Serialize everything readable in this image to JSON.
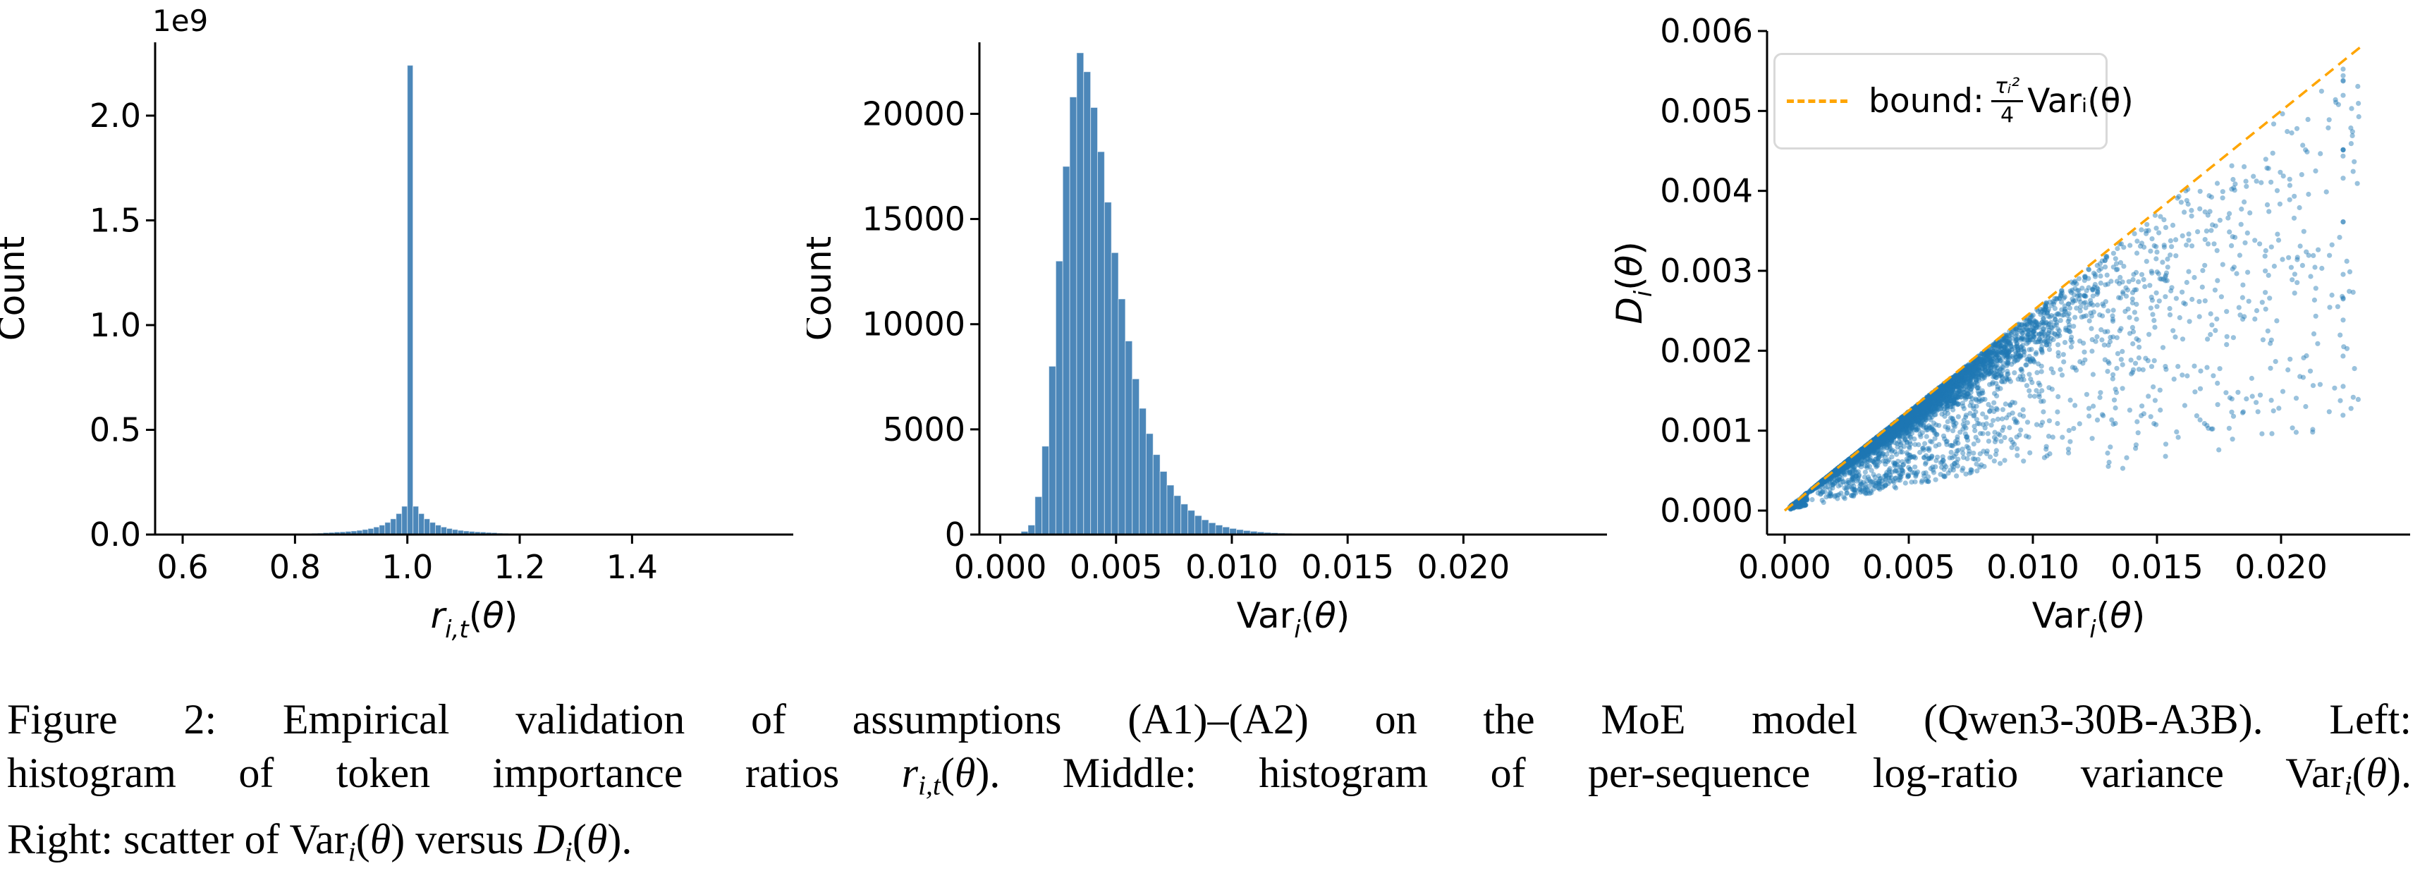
{
  "colors": {
    "bar_fill": "#4c87b9",
    "bar_edge": "#ffffff",
    "scatter_point": "#1f77b4",
    "bound_line": "#ffa500",
    "axis": "#000000",
    "legend_border": "#d9d9d9",
    "background": "#ffffff"
  },
  "chart_data": [
    {
      "type": "bar",
      "id": "left-histogram",
      "title": "",
      "xlabel_segments": [
        {
          "t": "r",
          "it": true
        },
        {
          "t": "i,t",
          "sub": true,
          "it": true
        },
        {
          "t": "("
        },
        {
          "t": "θ",
          "it": true
        },
        {
          "t": ")"
        }
      ],
      "ylabel": "Count",
      "offset_text": "1e9",
      "y_unit": "1e9",
      "grid": false,
      "xlim": [
        0.551,
        1.687
      ],
      "ylim": [
        0,
        2.35
      ],
      "x_ticks": {
        "values": [
          0.6,
          0.8,
          1.0,
          1.2,
          1.4
        ],
        "labels": [
          "0.6",
          "0.8",
          "1.0",
          "1.2",
          "1.4"
        ]
      },
      "y_ticks": {
        "values": [
          0,
          0.5,
          1.0,
          1.5,
          2.0
        ],
        "labels": [
          "0.0",
          "0.5",
          "1.0",
          "1.5",
          "2.0"
        ]
      },
      "bins": {
        "start": 0.6,
        "width": 0.01
      },
      "heights": [
        0,
        0,
        0,
        0,
        0,
        0,
        0,
        0,
        0,
        0,
        0.001,
        0.001,
        0.001,
        0.001,
        0.001,
        0.002,
        0.002,
        0.002,
        0.003,
        0.003,
        0.004,
        0.005,
        0.005,
        0.006,
        0.007,
        0.009,
        0.01,
        0.012,
        0.013,
        0.015,
        0.017,
        0.02,
        0.024,
        0.029,
        0.036,
        0.045,
        0.058,
        0.075,
        0.1,
        0.135,
        2.24,
        0.135,
        0.1,
        0.075,
        0.058,
        0.045,
        0.036,
        0.029,
        0.024,
        0.02,
        0.017,
        0.015,
        0.013,
        0.012,
        0.01,
        0.009,
        0.007,
        0.006,
        0.005,
        0.005,
        0.004,
        0.003,
        0.003,
        0.002,
        0.002,
        0.002,
        0.001,
        0.001,
        0.001,
        0.001,
        0.001,
        0,
        0,
        0,
        0,
        0,
        0,
        0,
        0,
        0,
        0,
        0,
        0,
        0,
        0,
        0,
        0,
        0,
        0,
        0,
        0
      ]
    },
    {
      "type": "bar",
      "id": "middle-histogram",
      "title": "",
      "xlabel_segments": [
        {
          "t": "Var"
        },
        {
          "t": "i",
          "sub": true,
          "it": true
        },
        {
          "t": "("
        },
        {
          "t": "θ",
          "it": true
        },
        {
          "t": ")"
        }
      ],
      "ylabel": "Count",
      "grid": false,
      "xlim": [
        -0.0009,
        0.0262
      ],
      "ylim": [
        0,
        23400
      ],
      "x_ticks": {
        "values": [
          0.0,
          0.005,
          0.01,
          0.015,
          0.02
        ],
        "labels": [
          "0.000",
          "0.005",
          "0.010",
          "0.015",
          "0.020"
        ]
      },
      "y_ticks": {
        "values": [
          0,
          5000,
          10000,
          15000,
          20000
        ],
        "labels": [
          "0",
          "5000",
          "10000",
          "15000",
          "20000"
        ]
      },
      "bins": {
        "start": 0.0,
        "width": 0.0003
      },
      "heights": [
        0,
        0,
        30,
        150,
        450,
        1800,
        4200,
        8000,
        13000,
        17500,
        20800,
        22900,
        22000,
        20300,
        18200,
        15800,
        13400,
        11200,
        9200,
        7400,
        6000,
        4800,
        3800,
        3000,
        2350,
        1850,
        1450,
        1150,
        900,
        700,
        560,
        450,
        360,
        290,
        235,
        190,
        155,
        125,
        100,
        85,
        70,
        58,
        48,
        40,
        33,
        27,
        22,
        18,
        15,
        12,
        10,
        8,
        7,
        6,
        5,
        4,
        4,
        3,
        3,
        2,
        2,
        2,
        2,
        1,
        1,
        1,
        1,
        1,
        1,
        1,
        1,
        1,
        1,
        1,
        1,
        1,
        0,
        0
      ]
    },
    {
      "type": "scatter",
      "id": "scatter-plot",
      "title": "",
      "xlabel_segments": [
        {
          "t": "Var"
        },
        {
          "t": "i",
          "sub": true,
          "it": true
        },
        {
          "t": "("
        },
        {
          "t": "θ",
          "it": true
        },
        {
          "t": ")"
        }
      ],
      "ylabel_segments": [
        {
          "t": "D",
          "it": true
        },
        {
          "t": "i",
          "sub": true,
          "it": true
        },
        {
          "t": "("
        },
        {
          "t": "θ",
          "it": true
        },
        {
          "t": ")"
        }
      ],
      "grid": false,
      "xlim": [
        -0.00071,
        0.0252
      ],
      "ylim": [
        -0.0003,
        0.006
      ],
      "x_ticks": {
        "values": [
          0.0,
          0.005,
          0.01,
          0.015,
          0.02
        ],
        "labels": [
          "0.000",
          "0.005",
          "0.010",
          "0.015",
          "0.020"
        ]
      },
      "y_ticks": {
        "values": [
          0.0,
          0.001,
          0.002,
          0.003,
          0.004,
          0.005,
          0.006
        ],
        "labels": [
          "0.000",
          "0.001",
          "0.002",
          "0.003",
          "0.004",
          "0.005",
          "0.006"
        ]
      },
      "bound": {
        "slope": 0.25,
        "x_start": 0.0,
        "x_end": 0.0232
      },
      "legend": {
        "prefix": "bound:",
        "frac_num": "τᵢ²",
        "frac_den": "4",
        "suffix": "Varᵢ(θ)"
      },
      "points": {
        "generated": true,
        "seed": 7,
        "note": "dense wedge of points hugging the bound line from below, sparser spread beneath and to the right",
        "groups": [
          {
            "kind": "core",
            "n": 5200,
            "x_log_mu": 0.0045,
            "x_log_sigma": 0.55,
            "x_min": 0.0003,
            "x_max": 0.0225,
            "f_spread_base": 0.06,
            "f_spread_slope": 18
          },
          {
            "kind": "uniform",
            "n": 900,
            "x_log_mu": 0.006,
            "x_log_sigma": 0.6,
            "x_min": 0.001,
            "x_max": 0.0225,
            "f_min": 0.25,
            "f_max": 0.9
          },
          {
            "kind": "uniform",
            "n": 260,
            "x_min": 0.013,
            "x_max": 0.0232,
            "f_min": 0.15,
            "f_max": 0.95
          },
          {
            "kind": "uniform",
            "n": 140,
            "x_min": 0.0002,
            "x_max": 0.0009,
            "f_min": 0.3,
            "f_max": 0.97
          }
        ]
      }
    }
  ],
  "caption": {
    "lines": [
      [
        {
          "t": "Figure 2: Empirical validation of assumptions (A1)–(A2) on the MoE model (Qwen3-30B-A3B). Left:"
        }
      ],
      [
        {
          "t": "histogram of token importance ratios "
        },
        {
          "t": "r",
          "it": true
        },
        {
          "t": "i,t",
          "sub": true,
          "it": true
        },
        {
          "t": "("
        },
        {
          "t": "θ",
          "it": true
        },
        {
          "t": ")"
        },
        {
          "t": ". Middle: histogram of per-sequence log-ratio variance Var"
        },
        {
          "t": "i",
          "sub": true,
          "it": true
        },
        {
          "t": "("
        },
        {
          "t": "θ",
          "it": true
        },
        {
          "t": ")."
        }
      ],
      [
        {
          "t": "Right: scatter of Var"
        },
        {
          "t": "i",
          "sub": true,
          "it": true
        },
        {
          "t": "("
        },
        {
          "t": "θ",
          "it": true
        },
        {
          "t": ")"
        },
        {
          "t": " versus "
        },
        {
          "t": "D",
          "it": true
        },
        {
          "t": "i",
          "sub": true,
          "it": true
        },
        {
          "t": "("
        },
        {
          "t": "θ",
          "it": true
        },
        {
          "t": ")."
        }
      ]
    ]
  }
}
